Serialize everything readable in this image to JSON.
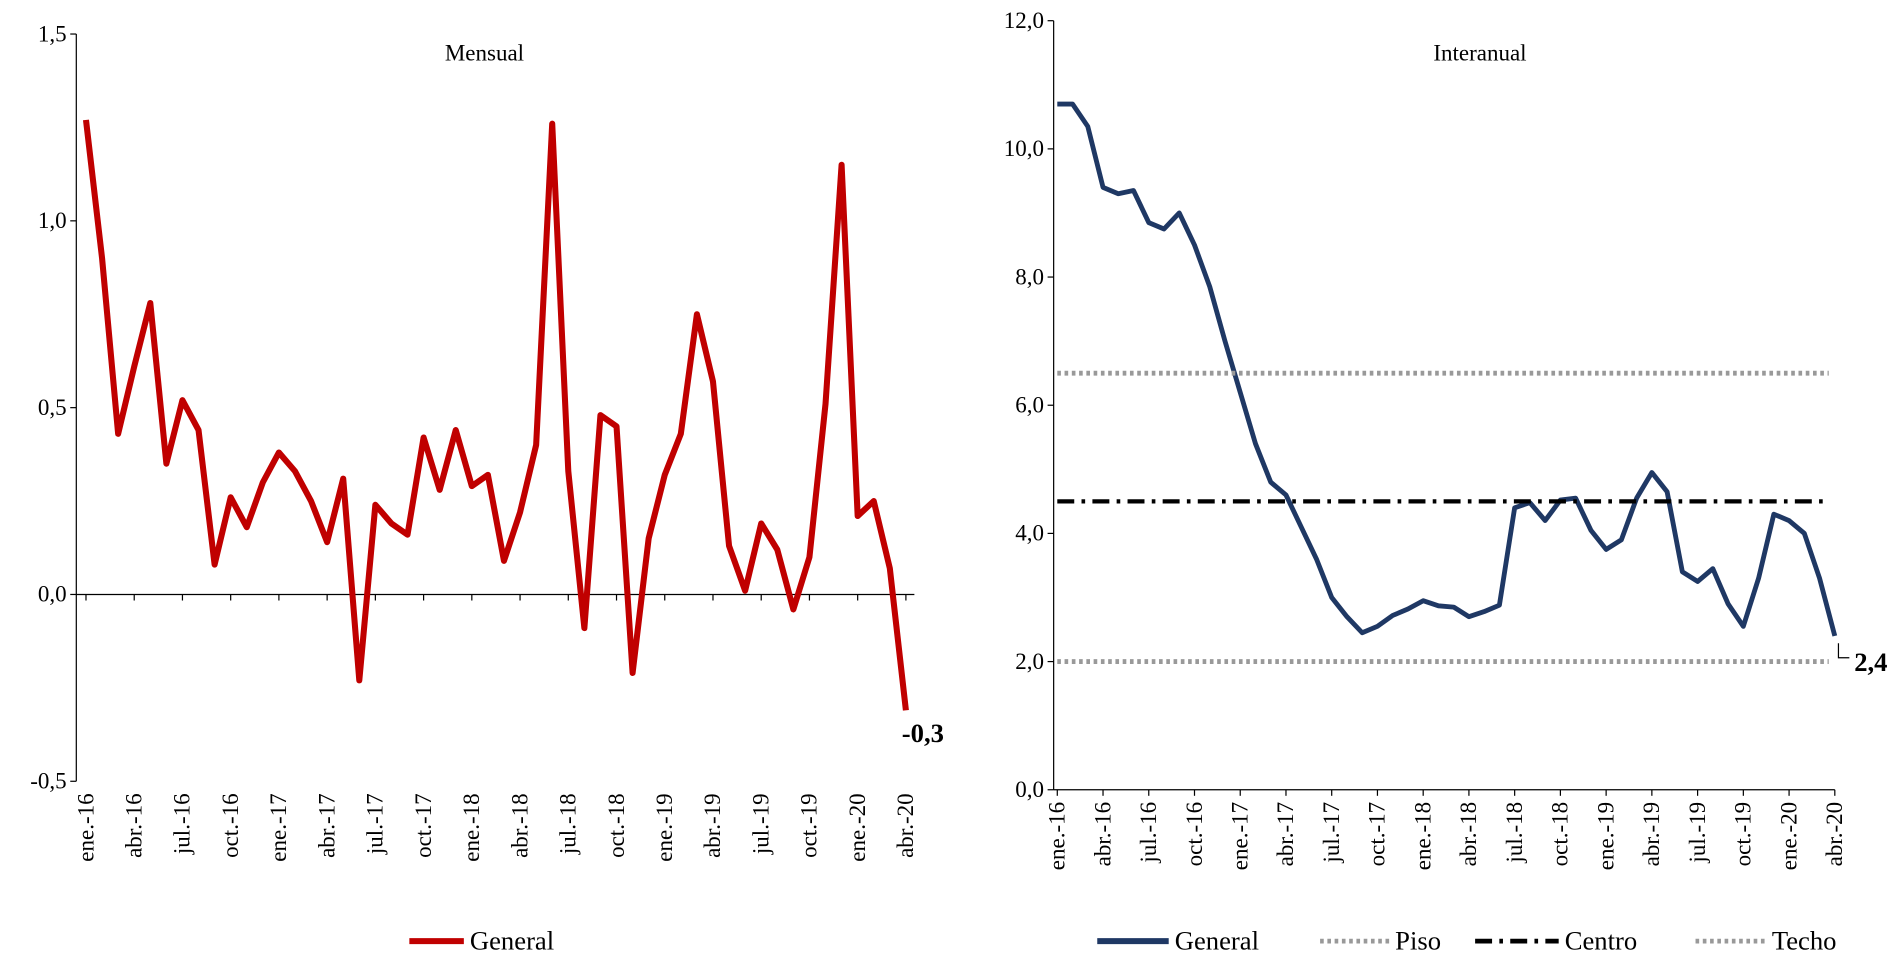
{
  "chart_data": [
    {
      "type": "line",
      "title": "Mensual",
      "categories": [
        "ene.-16",
        null,
        null,
        "abr.-16",
        null,
        null,
        "jul.-16",
        null,
        null,
        "oct.-16",
        null,
        null,
        "ene.-17",
        null,
        null,
        "abr.-17",
        null,
        null,
        "jul.-17",
        null,
        null,
        "oct.-17",
        null,
        null,
        "ene.-18",
        null,
        null,
        "abr.-18",
        null,
        null,
        "jul.-18",
        null,
        null,
        "oct.-18",
        null,
        null,
        "ene.-19",
        null,
        null,
        "abr.-19",
        null,
        null,
        "jul.-19",
        null,
        null,
        "oct.-19",
        null,
        null,
        "ene.-20",
        null,
        null,
        "abr.-20"
      ],
      "ylim": [
        -0.5,
        1.5
      ],
      "yticks": [
        {
          "value": -0.5,
          "label": "-0,5"
        },
        {
          "value": 0,
          "label": "0,0"
        },
        {
          "value": 0.5,
          "label": "0,5"
        },
        {
          "value": 1,
          "label": "1,0"
        },
        {
          "value": 1.5,
          "label": "1,5"
        }
      ],
      "series": [
        {
          "name": "General",
          "color": "#c00000",
          "line_style": "solid",
          "values": [
            1.27,
            0.9,
            0.43,
            0.61,
            0.78,
            0.35,
            0.52,
            0.44,
            0.08,
            0.26,
            0.18,
            0.3,
            0.38,
            0.33,
            0.25,
            0.14,
            0.31,
            -0.23,
            0.24,
            0.19,
            0.16,
            0.42,
            0.28,
            0.44,
            0.29,
            0.32,
            0.09,
            0.22,
            0.4,
            1.26,
            0.33,
            -0.09,
            0.48,
            0.45,
            -0.21,
            0.15,
            0.32,
            0.43,
            0.75,
            0.57,
            0.13,
            0.01,
            0.19,
            0.12,
            -0.04,
            0.1,
            0.51,
            1.15,
            0.21,
            0.25,
            0.07,
            -0.31
          ],
          "value_labels": [
            null,
            null,
            null,
            null,
            null,
            null,
            null,
            null,
            null,
            null,
            null,
            null,
            null,
            null,
            null,
            null,
            null,
            null,
            null,
            null,
            null,
            null,
            null,
            null,
            null,
            null,
            null,
            null,
            null,
            null,
            null,
            null,
            null,
            null,
            null,
            null,
            null,
            null,
            null,
            null,
            null,
            null,
            null,
            null,
            null,
            null,
            null,
            null,
            null,
            null,
            null,
            "-0,3"
          ]
        }
      ]
    },
    {
      "type": "line",
      "title": "Interanual",
      "categories": [
        "ene.-16",
        null,
        null,
        "abr.-16",
        null,
        null,
        "jul.-16",
        null,
        null,
        "oct.-16",
        null,
        null,
        "ene.-17",
        null,
        null,
        "abr.-17",
        null,
        null,
        "jul.-17",
        null,
        null,
        "oct.-17",
        null,
        null,
        "ene.-18",
        null,
        null,
        "abr.-18",
        null,
        null,
        "jul.-18",
        null,
        null,
        "oct.-18",
        null,
        null,
        "ene.-19",
        null,
        null,
        "abr.-19",
        null,
        null,
        "jul.-19",
        null,
        null,
        "oct.-19",
        null,
        null,
        "ene.-20",
        null,
        null,
        "abr.-20"
      ],
      "ylim": [
        0,
        12
      ],
      "yticks": [
        {
          "value": 0,
          "label": "0,0"
        },
        {
          "value": 2,
          "label": "2,0"
        },
        {
          "value": 4,
          "label": "4,0"
        },
        {
          "value": 6,
          "label": "6,0"
        },
        {
          "value": 8,
          "label": "8,0"
        },
        {
          "value": 10,
          "label": "10,0"
        },
        {
          "value": 12,
          "label": "12,0"
        }
      ],
      "series": [
        {
          "name": "General",
          "color": "#1f3864",
          "line_style": "solid",
          "values": [
            10.7,
            10.7,
            10.35,
            9.4,
            9.3,
            9.35,
            8.85,
            8.75,
            9.0,
            8.5,
            7.85,
            7.0,
            6.2,
            5.4,
            4.8,
            4.6,
            4.1,
            3.6,
            3.0,
            2.7,
            2.45,
            2.55,
            2.72,
            2.82,
            2.95,
            2.87,
            2.85,
            2.7,
            2.78,
            2.88,
            4.4,
            4.48,
            4.2,
            4.52,
            4.55,
            4.05,
            3.75,
            3.9,
            4.55,
            4.95,
            4.65,
            3.4,
            3.25,
            3.45,
            2.9,
            2.55,
            3.3,
            4.3,
            4.2,
            4.0,
            3.3,
            2.4
          ],
          "value_labels": [
            null,
            null,
            null,
            null,
            null,
            null,
            null,
            null,
            null,
            null,
            null,
            null,
            null,
            null,
            null,
            null,
            null,
            null,
            null,
            null,
            null,
            null,
            null,
            null,
            null,
            null,
            null,
            null,
            null,
            null,
            null,
            null,
            null,
            null,
            null,
            null,
            null,
            null,
            null,
            null,
            null,
            null,
            null,
            null,
            null,
            null,
            null,
            null,
            null,
            null,
            null,
            "2,4"
          ]
        },
        {
          "name": "Piso",
          "color": "#999999",
          "line_style": "dotted",
          "values": [
            2,
            2,
            2,
            2,
            2,
            2,
            2,
            2,
            2,
            2,
            2,
            2,
            2,
            2,
            2,
            2,
            2,
            2,
            2,
            2,
            2,
            2,
            2,
            2,
            2,
            2,
            2,
            2,
            2,
            2,
            2,
            2,
            2,
            2,
            2,
            2,
            2,
            2,
            2,
            2,
            2,
            2,
            2,
            2,
            2,
            2,
            2,
            2,
            2,
            2,
            2,
            2
          ]
        },
        {
          "name": "Centro",
          "color": "#000000",
          "line_style": "dash-dot",
          "values": [
            4.5,
            4.5,
            4.5,
            4.5,
            4.5,
            4.5,
            4.5,
            4.5,
            4.5,
            4.5,
            4.5,
            4.5,
            4.5,
            4.5,
            4.5,
            4.5,
            4.5,
            4.5,
            4.5,
            4.5,
            4.5,
            4.5,
            4.5,
            4.5,
            4.5,
            4.5,
            4.5,
            4.5,
            4.5,
            4.5,
            4.5,
            4.5,
            4.5,
            4.5,
            4.5,
            4.5,
            4.5,
            4.5,
            4.5,
            4.5,
            4.5,
            4.5,
            4.5,
            4.5,
            4.5,
            4.5,
            4.5,
            4.5,
            4.5,
            4.5,
            4.5,
            4.5
          ]
        },
        {
          "name": "Techo",
          "color": "#999999",
          "line_style": "dotted",
          "values": [
            6.5,
            6.5,
            6.5,
            6.5,
            6.5,
            6.5,
            6.5,
            6.5,
            6.5,
            6.5,
            6.5,
            6.5,
            6.5,
            6.5,
            6.5,
            6.5,
            6.5,
            6.5,
            6.5,
            6.5,
            6.5,
            6.5,
            6.5,
            6.5,
            6.5,
            6.5,
            6.5,
            6.5,
            6.5,
            6.5,
            6.5,
            6.5,
            6.5,
            6.5,
            6.5,
            6.5,
            6.5,
            6.5,
            6.5,
            6.5,
            6.5,
            6.5,
            6.5,
            6.5,
            6.5,
            6.5,
            6.5,
            6.5,
            6.5,
            6.5,
            6.5,
            6.5
          ]
        }
      ]
    }
  ]
}
